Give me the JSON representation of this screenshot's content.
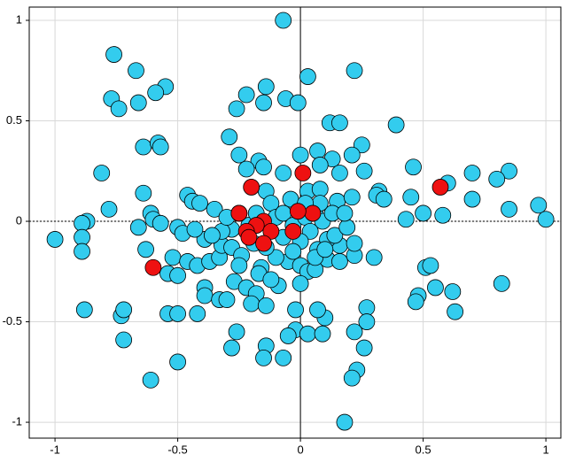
{
  "chart_data": {
    "type": "scatter",
    "xlim": [
      -1.105,
      1.061
    ],
    "ylim": [
      -1.079,
      1.066
    ],
    "xticks": [
      -1,
      -0.5,
      0,
      0.5,
      1
    ],
    "yticks": [
      -1,
      -0.5,
      0,
      0.5,
      1
    ],
    "grid": true,
    "series": [
      {
        "color": "#33ccee",
        "x": [
          -0.07,
          -0.76,
          -0.67,
          0.22,
          -0.77,
          -0.74,
          -0.55,
          -0.59,
          -0.14,
          -0.22,
          -0.66,
          -0.26,
          -0.15,
          -0.06,
          -0.01,
          0.03,
          0.12,
          0.16,
          0.39,
          -0.29,
          -0.64,
          -0.58,
          -0.57,
          0.13,
          0.07,
          0.25,
          0.21,
          -0.25,
          -0.17,
          -0.15,
          -0.22,
          -0.07,
          0.0,
          0.08,
          0.16,
          0.26,
          0.46,
          0.7,
          0.85,
          0.8,
          0.6,
          -0.81,
          -0.64,
          -0.46,
          -0.44,
          -0.41,
          -0.35,
          -0.14,
          -0.12,
          -0.04,
          0.03,
          0.08,
          0.15,
          0.21,
          0.32,
          0.31,
          0.34,
          0.45,
          0.7,
          0.85,
          0.97,
          1.0,
          0.58,
          0.5,
          0.43,
          -0.78,
          -0.61,
          -0.6,
          -0.87,
          -0.89,
          -1.0,
          -0.89,
          -0.89,
          -0.66,
          -0.57,
          -0.63,
          -0.5,
          -0.48,
          -0.52,
          -0.46,
          -0.42,
          -0.37,
          -0.33,
          -0.39,
          -0.32,
          -0.28,
          -0.24,
          -0.54,
          -0.5,
          -0.39,
          -0.39,
          -0.33,
          -0.3,
          -0.27,
          -0.22,
          -0.18,
          -0.16,
          -0.09,
          -0.05,
          0.0,
          0.03,
          0.0,
          0.06,
          0.11,
          0.16,
          0.22,
          0.3,
          0.16,
          0.22,
          0.07,
          0.11,
          0.14,
          0.19,
          0.51,
          0.53,
          0.55,
          0.62,
          0.48,
          0.47,
          0.82,
          0.63,
          0.27,
          0.27,
          0.1,
          0.07,
          -0.02,
          -0.02,
          0.03,
          0.09,
          0.22,
          0.26,
          -0.05,
          -0.14,
          -0.15,
          -0.07,
          -0.26,
          -0.28,
          -0.88,
          -0.73,
          -0.72,
          -0.72,
          -0.54,
          -0.5,
          -0.42,
          -0.5,
          -0.61,
          0.23,
          0.21,
          0.18,
          -0.2,
          -0.14,
          -0.21,
          -0.28,
          -0.32,
          -0.3,
          -0.18,
          -0.1,
          -0.07,
          -0.03,
          0.02,
          0.06,
          0.09,
          0.13,
          0.04,
          0.0,
          -0.03,
          -0.1,
          -0.14,
          -0.19,
          -0.07,
          0.06,
          0.1,
          0.18,
          0.08,
          0.02,
          -0.25,
          -0.36,
          -0.43,
          -0.25,
          -0.17,
          -0.12
        ],
        "values": [
          1.0,
          0.83,
          0.75,
          0.75,
          0.61,
          0.56,
          0.67,
          0.64,
          0.67,
          0.63,
          0.59,
          0.56,
          0.59,
          0.61,
          0.59,
          0.72,
          0.49,
          0.49,
          0.48,
          0.42,
          0.37,
          0.39,
          0.37,
          0.31,
          0.35,
          0.38,
          0.33,
          0.33,
          0.3,
          0.27,
          0.26,
          0.24,
          0.33,
          0.28,
          0.24,
          0.25,
          0.27,
          0.24,
          0.25,
          0.21,
          0.19,
          0.24,
          0.14,
          0.13,
          0.1,
          0.09,
          0.06,
          0.15,
          0.09,
          0.11,
          0.15,
          0.16,
          0.1,
          0.12,
          0.15,
          0.13,
          0.11,
          0.12,
          0.11,
          0.06,
          0.08,
          0.01,
          0.03,
          0.04,
          0.01,
          0.06,
          0.04,
          0.01,
          0.0,
          -0.01,
          -0.09,
          -0.08,
          -0.15,
          -0.03,
          -0.01,
          -0.14,
          -0.03,
          -0.06,
          -0.18,
          -0.2,
          -0.22,
          -0.2,
          -0.18,
          -0.09,
          -0.12,
          -0.13,
          -0.17,
          -0.26,
          -0.27,
          -0.33,
          -0.37,
          -0.39,
          -0.39,
          -0.3,
          -0.33,
          -0.36,
          -0.23,
          -0.32,
          -0.2,
          -0.22,
          -0.25,
          -0.31,
          -0.24,
          -0.19,
          -0.2,
          -0.17,
          -0.18,
          -0.12,
          -0.11,
          -0.14,
          -0.09,
          -0.07,
          -0.03,
          -0.23,
          -0.22,
          -0.33,
          -0.35,
          -0.37,
          -0.4,
          -0.31,
          -0.45,
          -0.43,
          -0.5,
          -0.48,
          -0.44,
          -0.44,
          -0.54,
          -0.56,
          -0.56,
          -0.55,
          -0.63,
          -0.57,
          -0.62,
          -0.68,
          -0.68,
          -0.55,
          -0.63,
          -0.44,
          -0.47,
          -0.44,
          -0.59,
          -0.46,
          -0.46,
          -0.46,
          -0.7,
          -0.79,
          -0.74,
          -0.78,
          -1.0,
          -0.41,
          -0.42,
          -0.02,
          -0.04,
          -0.05,
          0.02,
          0.04,
          0.02,
          0.04,
          -0.02,
          0.02,
          0.04,
          0.0,
          0.04,
          -0.05,
          -0.1,
          -0.15,
          -0.18,
          -0.13,
          -0.11,
          -0.08,
          -0.18,
          -0.14,
          0.04,
          0.09,
          0.09,
          0.04,
          -0.07,
          -0.04,
          -0.22,
          -0.26,
          -0.29
        ]
      },
      {
        "color": "#ee1111",
        "x": [
          0.01,
          -0.2,
          0.57,
          -0.25,
          0.05,
          -0.01,
          -0.15,
          -0.18,
          -0.22,
          -0.21,
          -0.12,
          -0.03,
          -0.15,
          -0.6
        ],
        "values": [
          0.24,
          0.17,
          0.17,
          0.04,
          0.04,
          0.05,
          0.0,
          -0.02,
          -0.05,
          -0.08,
          -0.05,
          -0.05,
          -0.11,
          -0.23
        ]
      }
    ]
  }
}
